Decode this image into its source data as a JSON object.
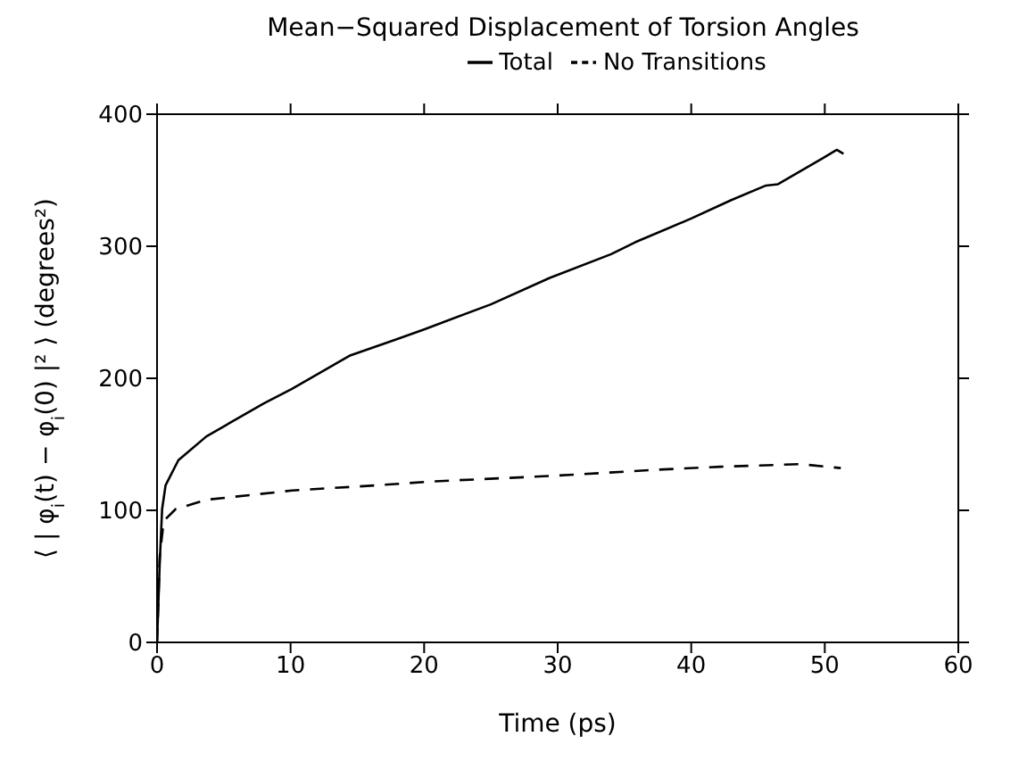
{
  "chart_data": {
    "type": "line",
    "title": "Mean−Squared Displacement of Torsion Angles",
    "xlabel": "Time (ps)",
    "ylabel": "⟨ | φ$_{i}$(t) − φ$_{i}$(0) |² ⟩  (degrees²)",
    "xlim": [
      0,
      60
    ],
    "xticks": [
      0,
      10,
      20,
      30,
      40,
      50,
      60
    ],
    "ylim": [
      0,
      400
    ],
    "yticks": [
      0,
      100,
      200,
      300,
      400
    ],
    "legend": "top",
    "marker": "none",
    "series": [
      {
        "name": "Total",
        "color": "#000000",
        "line_style": "solid",
        "x": [
          0,
          0.2,
          0.38,
          0.64,
          1.6,
          3.7,
          8,
          10.1,
          14.4,
          17.8,
          20,
          25,
          29.4,
          34,
          35.8,
          40,
          43,
          45.6,
          46.5,
          49.9,
          50.9,
          51.4
        ],
        "values": [
          0,
          60,
          101,
          119,
          138,
          156,
          181,
          192,
          217,
          229,
          237,
          256,
          276,
          294,
          303,
          321,
          335,
          346,
          347,
          367,
          373,
          370
        ]
      },
      {
        "name": "No Transitions",
        "color": "#000000",
        "line_style": "dashed",
        "x": [
          0,
          0.2,
          0.5,
          1.4,
          3.7,
          10.1,
          16.5,
          20.8,
          29.4,
          37.9,
          42.2,
          48.2,
          51.2
        ],
        "values": [
          0,
          65,
          92,
          101,
          108,
          115,
          119,
          122,
          126,
          131,
          133,
          135,
          132
        ]
      }
    ]
  }
}
